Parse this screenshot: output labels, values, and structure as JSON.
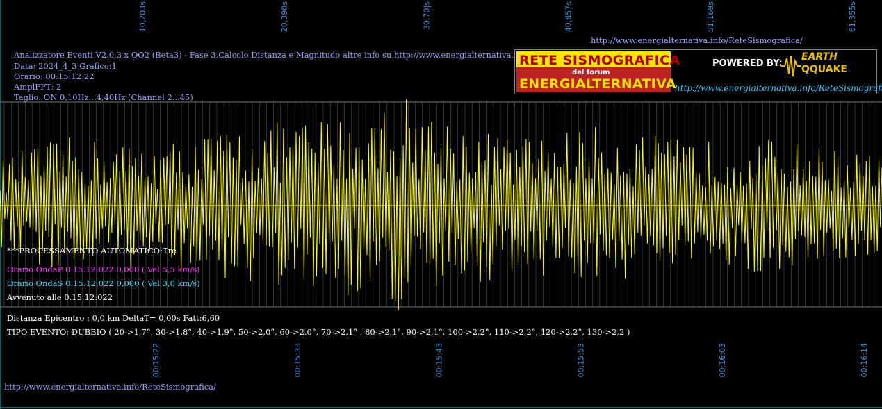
{
  "header": {
    "url_top": "http://www.energialternativa.info/ReteSismografica/",
    "title": "Analizzatore Eventi V2.0.3 x QQ2 (Beta3) - Fase 3.Calcolo Distanza e Magnitudo altre info su http://www.energialternativa.info/ReteSismografica/",
    "data_line": "Data: 2024_4_3 Grafico:1",
    "orario_line": "Orario: 00:15:12:22",
    "ampl_line": "AmplFFT: 2",
    "taglio_line": "Taglio: ON 0,10Hz...4,40Hz      (Channel 2...45)"
  },
  "logo": {
    "line1": "RETE SISMOGRAFICA",
    "line2": "del forum",
    "line3": "ENERGIALTERNATIVA",
    "powered": "POWERED BY:",
    "brand1": "EARTH",
    "brand2": "QQUAKE",
    "url": "http://www.energialternativa.info/ReteSismografica"
  },
  "info": {
    "processing": "***PROCESSAMENTO AUTOMATICO:Tre",
    "onda_p": "Orario OndaP 0.15.12:022  0,000 ( Vel 5,5 km/s)",
    "onda_s": "Orario OndaS 0.15.12:022  0,000 ( Vel 3,0 km/s)",
    "avvenuto": "Avvenuto alle 0.15.12:022",
    "distanza": "Distanza Epicentro : 0,0 km DeltaT= 0,00s  Fatt:6,60",
    "tipo_evento": "TIPO EVENTO: DUBBIO ( 20->1,7°, 30->1,8°, 40->1,9°, 50->2,0°, 60->2,0°, 70->2,1° , 80->2,1°, 90->2,1°, 100->2,2°, 110->2,2°, 120->2,2°, 130->2,2 )"
  },
  "footer": {
    "url": "http://www.energialternativa.info/ReteSismografica/"
  },
  "colors": {
    "background": "#000000",
    "trace": "#ffff00",
    "grid": "#555555",
    "axis_text": "#3a8fe0",
    "header_text": "#9aa0ff",
    "wave_p": "#ff33ff",
    "wave_s": "#33e0ff"
  },
  "chart_data": {
    "type": "line",
    "top_axis_labels": [
      "10,203s",
      "20,390s",
      "30,70|s",
      "40,857s",
      "51,169s",
      "61,355s"
    ],
    "bottom_axis_labels": [
      "00:15:22",
      "00:15:33",
      "00:15:43",
      "00:15:53",
      "00:16:03",
      "00:16:14"
    ],
    "grid": true,
    "series": [
      {
        "envelope": [
          0.42,
          0.55,
          0.62,
          0.58,
          0.55,
          0.6,
          0.68,
          0.72,
          0.78,
          0.8,
          0.85,
          1.0,
          0.82,
          0.7,
          0.62,
          0.65,
          0.72,
          0.68,
          0.62,
          0.58,
          0.62,
          0.6,
          0.55,
          0.5,
          0.45
        ]
      }
    ]
  }
}
